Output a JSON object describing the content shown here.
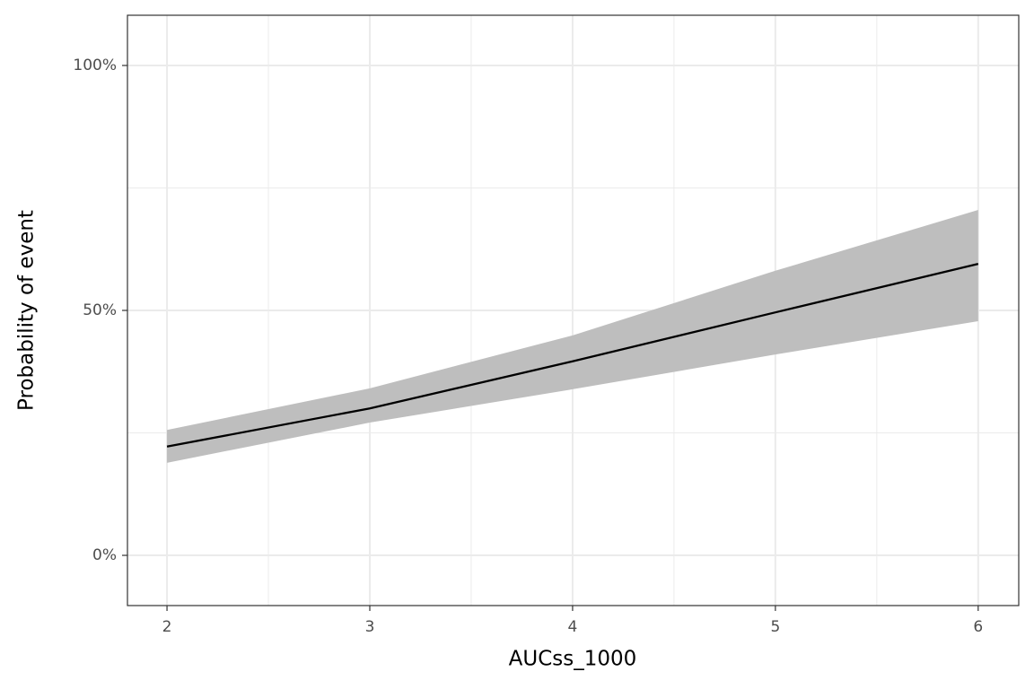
{
  "chart_data": {
    "type": "line",
    "x_label": "AUCss_1000",
    "y_label": "Probability of event",
    "x": [
      2,
      3,
      4,
      5,
      6
    ],
    "series": [
      {
        "color": "#000000",
        "band_color": "#bebebe",
        "values": [
          22.2,
          30.0,
          39.6,
          49.6,
          59.5
        ],
        "lower": [
          18.9,
          27.1,
          33.9,
          41.0,
          47.8
        ],
        "upper": [
          25.6,
          34.1,
          44.9,
          58.1,
          70.5
        ]
      }
    ],
    "xlim": [
      1.805,
      6.2
    ],
    "ylim": [
      -10.25,
      110.25
    ],
    "xticks": [
      2,
      3,
      4,
      5,
      6
    ],
    "xminorticks": [
      2.5,
      3.5,
      4.5,
      5.5
    ],
    "yticks": [
      {
        "value": 0,
        "label": "0%"
      },
      {
        "value": 50,
        "label": "50%"
      },
      {
        "value": 100,
        "label": "100%"
      }
    ],
    "yminorticks": [
      25,
      75
    ],
    "grid": true
  }
}
